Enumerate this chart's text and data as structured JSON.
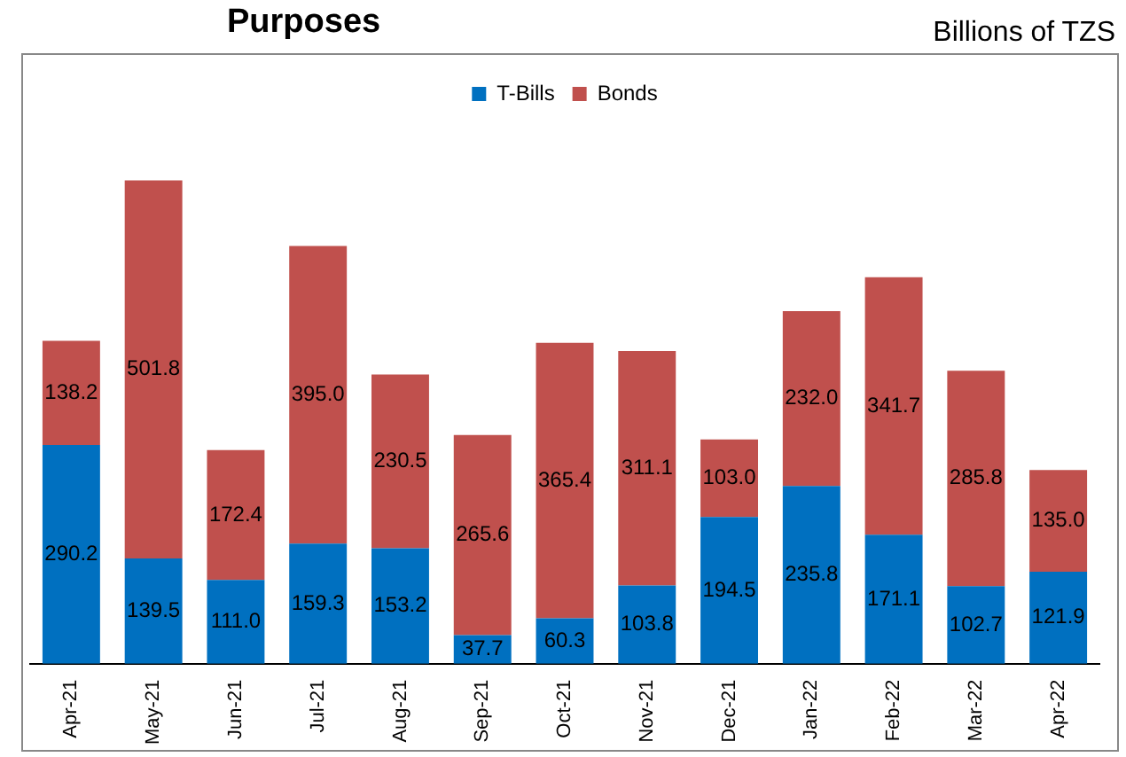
{
  "chart_data": {
    "type": "bar",
    "title": "Purposes",
    "annotations": [
      "Billions of TZS"
    ],
    "stacked": true,
    "legend": "top",
    "grid": false,
    "categories": [
      "Apr-21",
      "May-21",
      "Jun-21",
      "Jul-21",
      "Aug-21",
      "Sep-21",
      "Oct-21",
      "Nov-21",
      "Dec-21",
      "Jan-22",
      "Feb-22",
      "Mar-22",
      "Apr-22"
    ],
    "series": [
      {
        "name": "T-Bills",
        "color": "#0070c0",
        "values": [
          290.2,
          139.5,
          111.0,
          159.3,
          153.2,
          37.7,
          60.3,
          103.8,
          194.5,
          235.8,
          171.1,
          102.7,
          121.9
        ],
        "value_labels": [
          "290.2",
          "139.5",
          "111.0",
          "159.3",
          "153.2",
          "37.7",
          "60.3",
          "103.8",
          "194.5",
          "235.8",
          "171.1",
          "102.7",
          "121.9"
        ]
      },
      {
        "name": "Bonds",
        "color": "#c0504d",
        "values": [
          138.2,
          501.8,
          172.4,
          395.0,
          230.5,
          265.6,
          365.4,
          311.1,
          103.0,
          232.0,
          341.7,
          285.8,
          135.0
        ],
        "value_labels": [
          "138.2",
          "501.8",
          "172.4",
          "395.0",
          "230.5",
          "265.6",
          "365.4",
          "311.1",
          "103.0",
          "232.0",
          "341.7",
          "285.8",
          "135.0"
        ]
      }
    ]
  }
}
